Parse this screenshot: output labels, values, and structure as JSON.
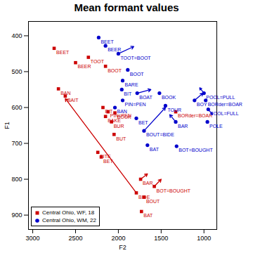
{
  "chart_data": {
    "type": "scatter",
    "title": "Mean formant values",
    "x_label": "F2",
    "y_label": "F1",
    "xlim": [
      3050,
      850
    ],
    "ylim": [
      940,
      360
    ],
    "xticks": [
      3000,
      2500,
      2000,
      1500,
      1000
    ],
    "yticks": [
      400,
      500,
      600,
      700,
      800,
      900
    ],
    "grid": false,
    "legend": "bottom-left",
    "series": [
      {
        "name": "Central Ohio, WF, 18",
        "color": "#cc0000",
        "marker": "square",
        "labels": [
          "BEET",
          "TOOT",
          "BEER",
          "BOOT",
          "BAN",
          "BAIT",
          "BIT",
          "PIN=PEN",
          "BOOK",
          "BAKE",
          "BUR",
          "BUT",
          "BITE",
          "BET",
          "BORder=BOAR",
          "BAR",
          "BIDE",
          "BOUT",
          "BOT=BOUGHT",
          "BAT"
        ],
        "x": [
          2750,
          2350,
          2500,
          2150,
          2700,
          2620,
          2180,
          2120,
          2040,
          2150,
          2080,
          2050,
          2240,
          2200,
          1330,
          1740,
          1790,
          1700,
          1580,
          1730
        ],
        "y": [
          435,
          460,
          475,
          485,
          548,
          568,
          600,
          612,
          615,
          625,
          640,
          675,
          725,
          738,
          612,
          800,
          838,
          850,
          820,
          890
        ],
        "x_end": [
          null,
          null,
          null,
          null,
          null,
          null,
          null,
          null,
          null,
          null,
          null,
          null,
          null,
          null,
          null,
          1660,
          2620,
          null,
          1500,
          null
        ],
        "y_end": [
          null,
          null,
          null,
          null,
          null,
          null,
          null,
          null,
          null,
          null,
          null,
          null,
          null,
          null,
          null,
          785,
          575,
          null,
          800,
          null
        ]
      },
      {
        "name": "Central Ohio, WM, 22",
        "color": "#0000cc",
        "marker": "circle",
        "labels": [
          "BEET",
          "BEER",
          "TOOT=BOOT",
          "BOOT",
          "BARE",
          "BIT",
          "BOAT",
          "PIN=PEN",
          "BOOK",
          "BAN",
          "BET",
          "TOUR",
          "BOY",
          "BAR",
          "BOUT=BIDE",
          "BAT",
          "BOT=BOUGHT",
          "POOL=PULL",
          "BORder=BOAR",
          "FOOL=FULL",
          "POLE"
        ],
        "x": [
          2230,
          2150,
          2000,
          1890,
          1950,
          1960,
          1780,
          1950,
          1520,
          2040,
          1790,
          1450,
          1110,
          1330,
          1700,
          1660,
          1320,
          1000,
          980,
          950,
          960
        ],
        "y": [
          405,
          428,
          450,
          495,
          525,
          550,
          560,
          580,
          560,
          600,
          630,
          595,
          580,
          640,
          665,
          705,
          708,
          560,
          580,
          605,
          640
        ],
        "x_end": [
          null,
          null,
          1820,
          null,
          null,
          null,
          1620,
          null,
          null,
          null,
          null,
          null,
          1010,
          1400,
          1450,
          null,
          null,
          1050,
          null,
          900,
          null
        ],
        "y_end": [
          null,
          null,
          430,
          null,
          null,
          null,
          550,
          null,
          null,
          null,
          null,
          null,
          560,
          620,
          600,
          null,
          null,
          545,
          null,
          620,
          null
        ]
      }
    ]
  }
}
